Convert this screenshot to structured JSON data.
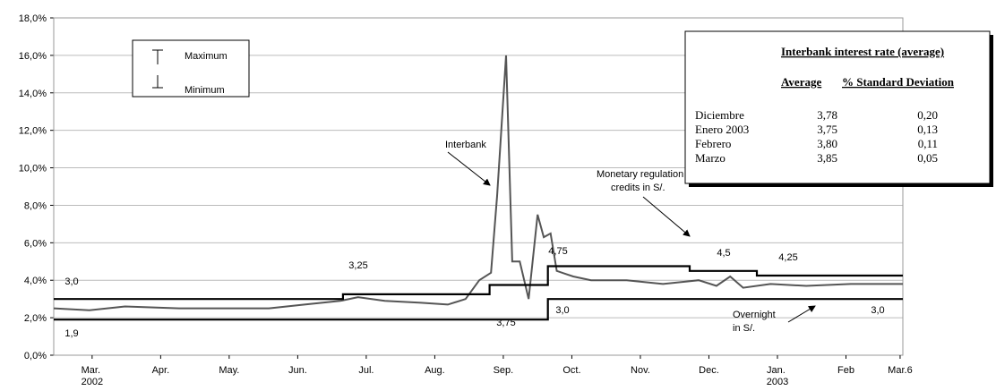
{
  "chart_data": {
    "type": "line",
    "ylim": [
      0,
      18
    ],
    "yticks": [
      {
        "value": 0,
        "label": "0,0%"
      },
      {
        "value": 2,
        "label": "2,0%"
      },
      {
        "value": 4,
        "label": "4,0%"
      },
      {
        "value": 6,
        "label": "6,0%"
      },
      {
        "value": 8,
        "label": "8,0%"
      },
      {
        "value": 10,
        "label": "10,0%"
      },
      {
        "value": 12,
        "label": "12,0%"
      },
      {
        "value": 14,
        "label": "14,0%"
      },
      {
        "value": 16,
        "label": "16,0%"
      },
      {
        "value": 18,
        "label": "18,0%"
      }
    ],
    "xlim": [
      -0.56,
      11.83
    ],
    "xticks": [
      {
        "value": 0,
        "label": "Mar. 2002"
      },
      {
        "value": 1,
        "label": "Apr."
      },
      {
        "value": 2,
        "label": "May."
      },
      {
        "value": 3,
        "label": "Jun."
      },
      {
        "value": 4,
        "label": "Jul."
      },
      {
        "value": 5,
        "label": "Aug."
      },
      {
        "value": 6,
        "label": "Sep."
      },
      {
        "value": 7,
        "label": "Oct."
      },
      {
        "value": 8,
        "label": "Nov."
      },
      {
        "value": 9,
        "label": "Dec."
      },
      {
        "value": 10,
        "label": "Jan. 2003"
      },
      {
        "value": 11,
        "label": "Feb"
      },
      {
        "value": 11.79,
        "label": "Mar.6"
      }
    ],
    "grid": true,
    "series": [
      {
        "color": "#555555",
        "x": [
          -0.56,
          -0.04,
          0.48,
          1.27,
          2.58,
          3.1,
          3.62,
          3.88,
          4.27,
          4.8,
          5.19,
          5.45,
          5.65,
          5.82,
          5.91,
          6.04,
          6.13,
          6.24,
          6.37,
          6.5,
          6.59,
          6.69,
          6.78,
          7.02,
          7.28,
          7.8,
          8.33,
          8.85,
          9.11,
          9.31,
          9.5,
          9.9,
          10.42,
          11.07,
          11.83
        ],
        "values": [
          2.5,
          2.4,
          2.6,
          2.5,
          2.5,
          2.7,
          2.9,
          3.1,
          2.9,
          2.8,
          2.7,
          3.0,
          4.0,
          4.4,
          8.5,
          16.0,
          5.0,
          5.0,
          3.0,
          7.5,
          6.3,
          6.5,
          4.5,
          4.2,
          4.0,
          4.0,
          3.8,
          4.0,
          3.7,
          4.2,
          3.6,
          3.8,
          3.7,
          3.8,
          3.8
        ]
      },
      {
        "color": "#000000",
        "x": [
          -0.56,
          3.66,
          3.66,
          5.8,
          5.8,
          6.65,
          6.65,
          8.72,
          8.72,
          9.7,
          9.7,
          11.83
        ],
        "values": [
          3.0,
          3.0,
          3.25,
          3.25,
          3.75,
          3.75,
          4.75,
          4.75,
          4.5,
          4.5,
          4.25,
          4.25
        ]
      },
      {
        "color": "#000000",
        "x": [
          -0.56,
          6.65,
          6.65,
          11.83
        ],
        "values": [
          1.9,
          1.9,
          3.0,
          3.0
        ]
      }
    ],
    "step_labels": [
      "3,0",
      "3,25",
      "3,75",
      "4,75",
      "4,5",
      "4,25",
      "1,9",
      "3,0",
      "3,0"
    ],
    "annotations": [
      "Interbank",
      "Monetary regulation",
      "credits in S/.",
      "Overnight",
      "in S/."
    ],
    "legend": [
      "Maximum",
      "Minimum"
    ],
    "table": {
      "title": "Interbank interest rate (average)",
      "columns": [
        "Average",
        "% Standard Deviation"
      ],
      "rows": [
        [
          "Diciembre",
          "3,78",
          "0,20"
        ],
        [
          "Enero 2003",
          "3,75",
          "0,13"
        ],
        [
          "Febrero",
          "3,80",
          "0,11"
        ],
        [
          "Marzo",
          "3,85",
          "0,05"
        ]
      ]
    }
  }
}
